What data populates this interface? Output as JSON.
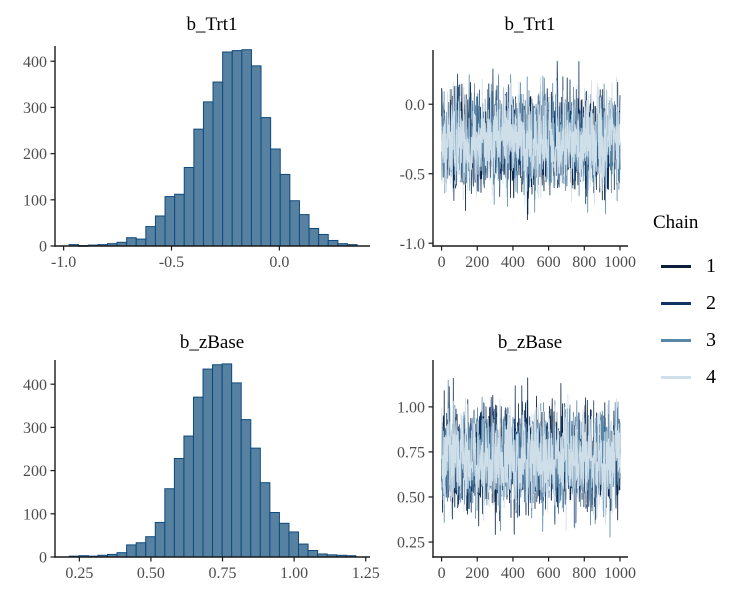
{
  "figure": {
    "background": "#ffffff",
    "title_color": "#000000",
    "axis_text_color": "#4d4d4d",
    "axis_line_color": "#1a1a1a"
  },
  "legend": {
    "title": "Chain",
    "items": [
      {
        "label": "1",
        "color": "#0b1f3c"
      },
      {
        "label": "2",
        "color": "#0e3364"
      },
      {
        "label": "3",
        "color": "#5a87a8"
      },
      {
        "label": "4",
        "color": "#cfdfea"
      }
    ]
  },
  "chart_data": [
    {
      "type": "bar",
      "subtype": "histogram",
      "panel": "top-left",
      "title": "b_Trt1",
      "bin_start": -0.975,
      "bin_width": 0.0445,
      "counts": [
        3,
        1,
        2,
        3,
        5,
        8,
        18,
        15,
        42,
        65,
        107,
        112,
        170,
        253,
        312,
        355,
        420,
        423,
        425,
        390,
        278,
        210,
        155,
        98,
        68,
        38,
        25,
        12,
        5,
        3
      ],
      "bar_fill": "#5681a1",
      "bar_stroke": "#0f4a7b",
      "xlim": [
        -1.04,
        0.42
      ],
      "ylim": [
        0,
        433
      ],
      "x_ticks": [
        -1.0,
        -0.5,
        0.0
      ],
      "x_tick_labels": [
        "-1.0",
        "-0.5",
        "0.0"
      ],
      "y_ticks": [
        0,
        100,
        200,
        300,
        400
      ],
      "y_tick_labels": [
        "0",
        "100",
        "200",
        "300",
        "400"
      ]
    },
    {
      "type": "line",
      "subtype": "trace",
      "panel": "top-right",
      "title": "b_Trt1",
      "n_iterations": 1000,
      "series": [
        {
          "name": "1",
          "mean": -0.27,
          "sd": 0.17
        },
        {
          "name": "2",
          "mean": -0.27,
          "sd": 0.17
        },
        {
          "name": "3",
          "mean": -0.27,
          "sd": 0.17
        },
        {
          "name": "4",
          "mean": -0.27,
          "sd": 0.17
        }
      ],
      "observed_range": [
        -0.95,
        0.32
      ],
      "xlim": [
        -48,
        1045
      ],
      "ylim": [
        -1.02,
        0.39
      ],
      "x_ticks": [
        0,
        200,
        400,
        600,
        800,
        1000
      ],
      "x_tick_labels": [
        "0",
        "200",
        "400",
        "600",
        "800",
        "1000"
      ],
      "y_ticks": [
        0.0,
        -0.5,
        -1.0
      ],
      "y_tick_labels": [
        "0.0",
        "-0.5",
        "-1.0"
      ]
    },
    {
      "type": "bar",
      "subtype": "histogram",
      "panel": "bottom-left",
      "title": "b_zBase",
      "bin_start": 0.215,
      "bin_width": 0.03335,
      "counts": [
        2,
        3,
        2,
        4,
        6,
        10,
        28,
        33,
        47,
        80,
        158,
        228,
        280,
        370,
        435,
        445,
        447,
        403,
        318,
        252,
        172,
        103,
        78,
        58,
        30,
        15,
        7,
        5,
        4,
        3
      ],
      "bar_fill": "#5681a1",
      "bar_stroke": "#0f4a7b",
      "xlim": [
        0.165,
        1.265
      ],
      "ylim": [
        0,
        456
      ],
      "x_ticks": [
        0.25,
        0.5,
        0.75,
        1.0,
        1.25
      ],
      "x_tick_labels": [
        "0.25",
        "0.50",
        "0.75",
        "1.00",
        "1.25"
      ],
      "y_ticks": [
        0,
        100,
        200,
        300,
        400
      ],
      "y_tick_labels": [
        "0",
        "100",
        "200",
        "300",
        "400"
      ]
    },
    {
      "type": "line",
      "subtype": "trace",
      "panel": "bottom-right",
      "title": "b_zBase",
      "n_iterations": 1000,
      "series": [
        {
          "name": "1",
          "mean": 0.71,
          "sd": 0.135
        },
        {
          "name": "2",
          "mean": 0.71,
          "sd": 0.135
        },
        {
          "name": "3",
          "mean": 0.71,
          "sd": 0.135
        },
        {
          "name": "4",
          "mean": 0.71,
          "sd": 0.135
        }
      ],
      "observed_range": [
        0.21,
        1.19
      ],
      "xlim": [
        -48,
        1045
      ],
      "ylim": [
        0.167,
        1.26
      ],
      "x_ticks": [
        0,
        200,
        400,
        600,
        800,
        1000
      ],
      "x_tick_labels": [
        "0",
        "200",
        "400",
        "600",
        "800",
        "1000"
      ],
      "y_ticks": [
        0.25,
        0.5,
        0.75,
        1.0
      ],
      "y_tick_labels": [
        "0.25",
        "0.50",
        "0.75",
        "1.00"
      ]
    }
  ]
}
